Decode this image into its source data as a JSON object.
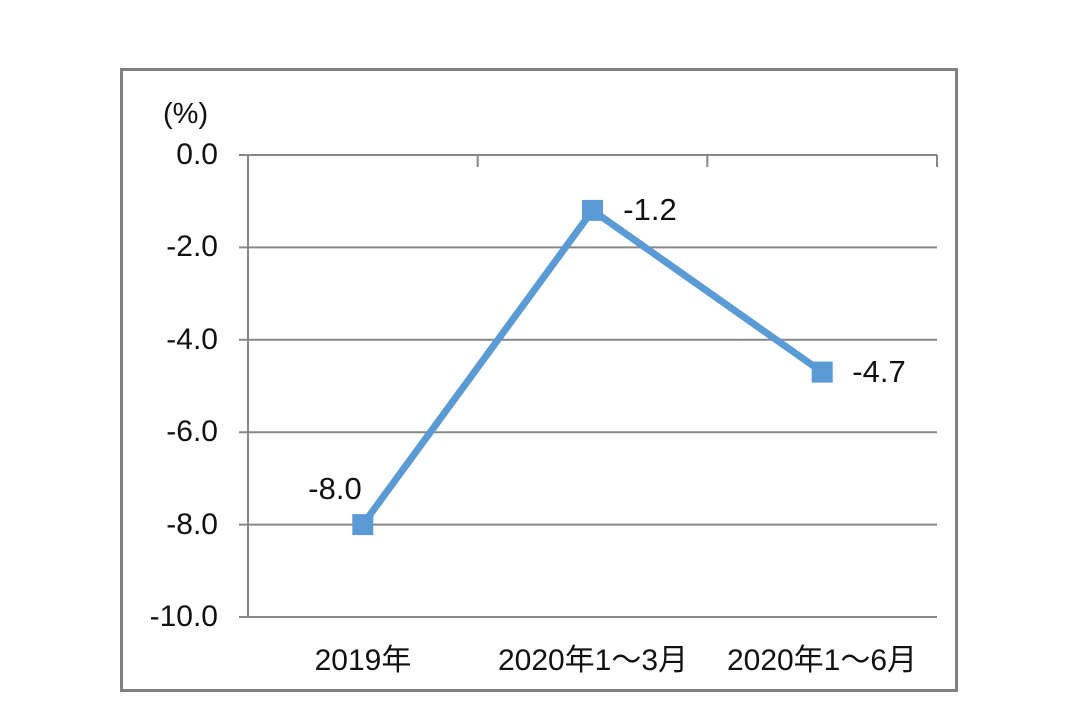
{
  "chart": {
    "unit_label": "(%)",
    "colors": {
      "line": "#5B9BD5",
      "grid": "#878787",
      "frame": "#808080",
      "text": "#111111",
      "background": "#ffffff"
    }
  },
  "chart_data": {
    "type": "line",
    "title": "",
    "categories": [
      "2019年",
      "2020年1～3月",
      "2020年1～6月"
    ],
    "values": [
      -8.0,
      -1.2,
      -4.7
    ],
    "data_labels": [
      "-8.0",
      "-1.2",
      "-4.7"
    ],
    "data_label_positions": [
      "above-left",
      "right",
      "right"
    ],
    "xlabel": "",
    "ylabel": "(%)",
    "ylim": [
      -10,
      0
    ],
    "yticks": [
      "0.0",
      "-2.0",
      "-4.0",
      "-6.0",
      "-8.0",
      "-10.0"
    ],
    "ytick_values": [
      0,
      -2,
      -4,
      -6,
      -8,
      -10
    ],
    "grid": true,
    "legend": "none",
    "marker": "square",
    "axis_position": "zero-top"
  }
}
